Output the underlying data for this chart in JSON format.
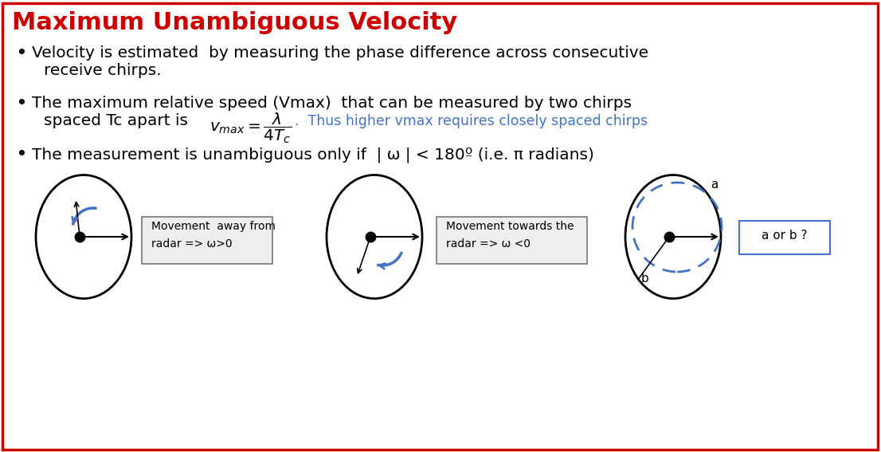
{
  "title": "Maximum Unambiguous Velocity",
  "title_color": "#CC0000",
  "bg_color": "#FFFFFF",
  "border_color": "#CC0000",
  "bullet1_line1": "Velocity is estimated  by measuring the phase difference across consecutive",
  "bullet1_line2": "receive chirps.",
  "bullet2_line1": "The maximum relative speed (Vmax)  that can be measured by two chirps",
  "bullet2_line2": "spaced Tc apart is",
  "formula_note": "Thus higher vmax requires closely spaced chirps",
  "formula_note_color": "#4472C4",
  "bullet3": "The measurement is unambiguous only if  | ω | < 180º (i.e. π radians)",
  "box1_text": "Movement  away from\nradar => ω>0",
  "box2_text": "Movement towards the\nradar => ω <0",
  "box3_text": "a or b ?",
  "text_color": "#000000",
  "blue_color": "#4472C4",
  "ellipse_color": "#000000",
  "dashed_circle_color": "#4472C4",
  "title_fontsize": 22,
  "body_fontsize": 14.5
}
